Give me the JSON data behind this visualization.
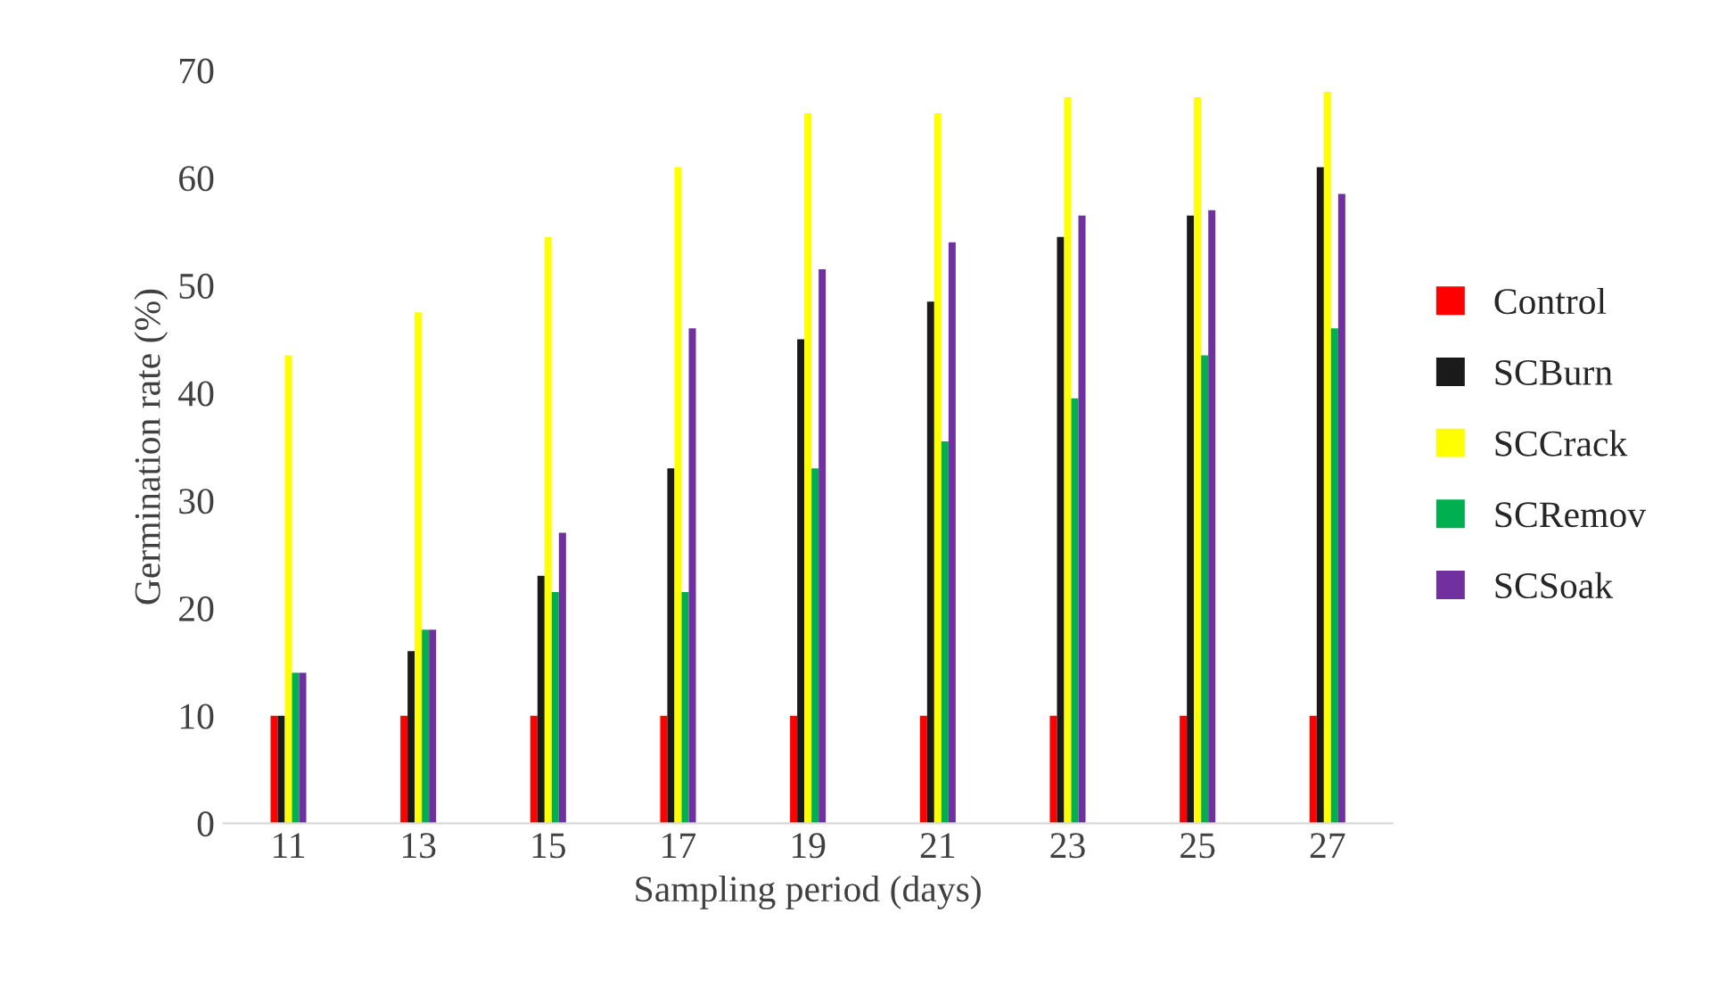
{
  "chart_data": {
    "type": "bar",
    "xlabel": "Sampling period (days)",
    "ylabel": "Germination rate (%)",
    "categories": [
      "11",
      "13",
      "15",
      "17",
      "19",
      "21",
      "23",
      "25",
      "27"
    ],
    "series": [
      {
        "name": "Control",
        "color": "#ff0000",
        "values": [
          10,
          10,
          10,
          10,
          10,
          10,
          10,
          10,
          10
        ]
      },
      {
        "name": "SCBurn",
        "color": "#1a1a1a",
        "values": [
          10,
          16,
          23,
          33,
          45,
          48.5,
          54.5,
          56.5,
          61
        ]
      },
      {
        "name": "SCCrack",
        "color": "#ffff00",
        "values": [
          43.5,
          47.5,
          54.5,
          61,
          66,
          66,
          67.5,
          67.5,
          68
        ]
      },
      {
        "name": "SCRemov",
        "color": "#00b050",
        "values": [
          14,
          18,
          21.5,
          21.5,
          33,
          35.5,
          39.5,
          43.5,
          46
        ]
      },
      {
        "name": "SCSoak",
        "color": "#7030a0",
        "values": [
          14,
          18,
          27,
          46,
          51.5,
          54,
          56.5,
          57,
          58.5
        ]
      }
    ],
    "ylim": [
      0,
      70
    ],
    "yticks": [
      0,
      10,
      20,
      30,
      40,
      50,
      60,
      70
    ],
    "grid": false,
    "legend": "right"
  }
}
